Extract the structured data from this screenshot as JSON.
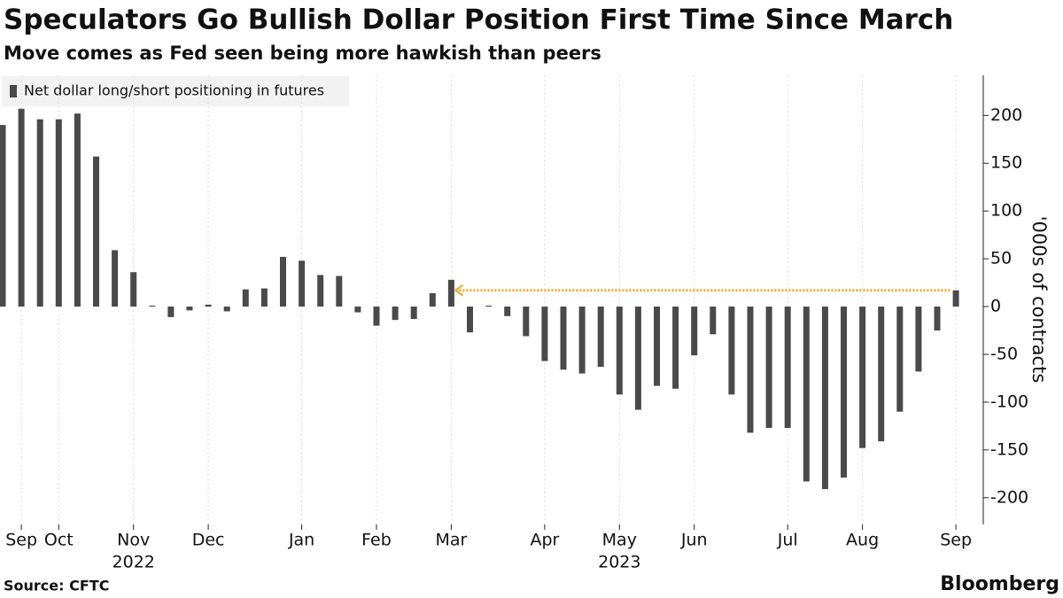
{
  "chart_data": {
    "type": "bar",
    "title": "Speculators Go Bullish Dollar Position First Time Since March",
    "subtitle": "Move comes as Fed seen being more hawkish than peers",
    "legend_label": "Net dollar long/short positioning in futures",
    "y_axis_label": "'000s of contracts",
    "source": "Source: CFTC",
    "brand": "Bloomberg",
    "color": "#4a4a4a",
    "annotation_color": "#f5a623",
    "categories": [
      null,
      "Sep",
      null,
      "Oct",
      null,
      null,
      null,
      "Nov",
      null,
      null,
      null,
      "Dec",
      null,
      null,
      null,
      null,
      "Jan",
      null,
      null,
      null,
      "Feb",
      null,
      null,
      null,
      "Mar",
      null,
      null,
      null,
      null,
      "Apr",
      null,
      null,
      null,
      "May",
      null,
      null,
      null,
      "Jun",
      null,
      null,
      null,
      null,
      "Jul",
      null,
      null,
      null,
      "Aug",
      null,
      null,
      null,
      null,
      "Sep"
    ],
    "category_years": [
      null,
      null,
      null,
      null,
      null,
      null,
      null,
      "2022",
      null,
      null,
      null,
      null,
      null,
      null,
      null,
      null,
      null,
      null,
      null,
      null,
      null,
      null,
      null,
      null,
      null,
      null,
      null,
      null,
      null,
      null,
      null,
      null,
      null,
      "2023",
      null,
      null,
      null,
      null,
      null,
      null,
      null,
      null,
      null,
      null,
      null,
      null,
      null,
      null,
      null,
      null,
      null,
      null
    ],
    "values": [
      190,
      207,
      196,
      196,
      202,
      157,
      59,
      36,
      1,
      -11,
      -4,
      2,
      -5,
      18,
      19,
      52,
      48,
      33,
      32,
      -6,
      -20,
      -14,
      -13,
      14,
      28,
      -27,
      1,
      -10,
      -31,
      -57,
      -66,
      -70,
      -63,
      -92,
      -108,
      -83,
      -86,
      -51,
      -29,
      -92,
      -132,
      -127,
      -127,
      -183,
      -191,
      -179,
      -148,
      -141,
      -110,
      -68,
      -25,
      17
    ],
    "ylim": [
      -228,
      242
    ],
    "yticks": [
      -200,
      -150,
      -100,
      -50,
      0,
      50,
      100,
      150,
      200
    ],
    "grid": true
  }
}
